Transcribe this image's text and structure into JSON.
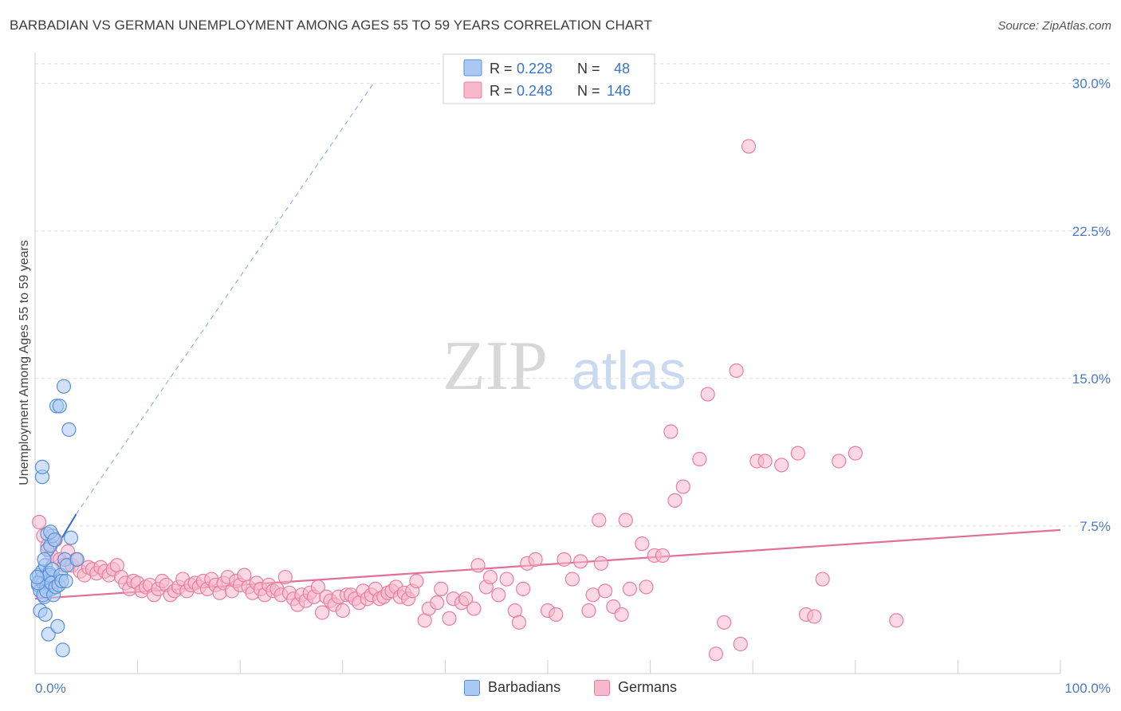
{
  "header": {
    "title": "BARBADIAN VS GERMAN UNEMPLOYMENT AMONG AGES 55 TO 59 YEARS CORRELATION CHART",
    "source": "Source: ZipAtlas.com"
  },
  "watermark": {
    "zip": "ZIP",
    "atlas": "atlas"
  },
  "legend": {
    "rows": [
      {
        "r_label": "R =",
        "r_value": "0.228",
        "n_label": "N =",
        "n_value": "48"
      },
      {
        "r_label": "R =",
        "r_value": "0.248",
        "n_label": "N =",
        "n_value": "146"
      }
    ]
  },
  "bottom_legend": {
    "items": [
      "Barbadians",
      "Germans"
    ]
  },
  "colors": {
    "barbadian_fill": "#a9c8f2",
    "barbadian_stroke": "#5b8fd6",
    "barbadian_line": "#2f6fd1",
    "german_fill": "#f7b8cc",
    "german_stroke": "#e87fa0",
    "german_line": "#e07098",
    "tick_text": "#4a7ac9",
    "grid": "#dddddd"
  },
  "chart_data": {
    "type": "scatter",
    "title": "BARBADIAN VS GERMAN UNEMPLOYMENT AMONG AGES 55 TO 59 YEARS CORRELATION CHART",
    "xlabel": "",
    "ylabel": "Unemployment Among Ages 55 to 59 years",
    "xlim": [
      0,
      100
    ],
    "ylim": [
      0,
      31
    ],
    "x_tick_labels": [
      "0.0%",
      "100.0%"
    ],
    "y_ticks": [
      7.5,
      15.0,
      22.5,
      30.0
    ],
    "y_tick_labels": [
      "7.5%",
      "15.0%",
      "22.5%",
      "30.0%"
    ],
    "series": [
      {
        "name": "Barbadians",
        "R": 0.228,
        "N": 48,
        "trend": {
          "x0": 0,
          "y0": 4.6,
          "x1": 4,
          "y1": 8.1,
          "dashed_to_x": 33,
          "dashed_to_y": 30
        },
        "points": [
          [
            0.3,
            4.5
          ],
          [
            0.4,
            5.0
          ],
          [
            0.5,
            4.2
          ],
          [
            0.6,
            4.8
          ],
          [
            0.7,
            5.2
          ],
          [
            0.8,
            4.6
          ],
          [
            0.9,
            3.9
          ],
          [
            1.0,
            5.5
          ],
          [
            1.1,
            4.4
          ],
          [
            1.2,
            6.3
          ],
          [
            1.3,
            4.7
          ],
          [
            1.4,
            5.1
          ],
          [
            1.5,
            6.5
          ],
          [
            1.6,
            4.3
          ],
          [
            1.7,
            7.0
          ],
          [
            1.8,
            4.9
          ],
          [
            0.5,
            3.2
          ],
          [
            0.7,
            10.0
          ],
          [
            0.7,
            10.5
          ],
          [
            0.8,
            4.0
          ],
          [
            0.9,
            5.8
          ],
          [
            1.0,
            3.0
          ],
          [
            1.1,
            4.2
          ],
          [
            1.2,
            7.1
          ],
          [
            1.3,
            2.0
          ],
          [
            1.4,
            5.0
          ],
          [
            1.5,
            7.2
          ],
          [
            1.6,
            4.6
          ],
          [
            1.7,
            5.3
          ],
          [
            1.8,
            4.0
          ],
          [
            1.9,
            6.8
          ],
          [
            2.0,
            4.4
          ],
          [
            2.1,
            13.6
          ],
          [
            2.2,
            2.4
          ],
          [
            2.3,
            4.5
          ],
          [
            2.4,
            13.6
          ],
          [
            2.5,
            5.0
          ],
          [
            2.6,
            4.7
          ],
          [
            2.7,
            1.2
          ],
          [
            2.8,
            14.6
          ],
          [
            2.9,
            5.8
          ],
          [
            3.0,
            4.7
          ],
          [
            3.1,
            5.5
          ],
          [
            3.3,
            12.4
          ],
          [
            3.5,
            6.9
          ],
          [
            4.1,
            5.8
          ],
          [
            0.3,
            4.6
          ],
          [
            0.2,
            4.9
          ]
        ]
      },
      {
        "name": "Germans",
        "R": 0.248,
        "N": 146,
        "trend": {
          "x0": 0,
          "y0": 3.8,
          "x1": 100,
          "y1": 7.3
        },
        "points": [
          [
            0.4,
            7.7
          ],
          [
            0.8,
            7.0
          ],
          [
            1.2,
            6.5
          ],
          [
            1.6,
            6.0
          ],
          [
            2.0,
            6.8
          ],
          [
            2.4,
            5.8
          ],
          [
            2.8,
            5.5
          ],
          [
            3.2,
            6.2
          ],
          [
            3.6,
            5.5
          ],
          [
            4.0,
            5.8
          ],
          [
            4.4,
            5.2
          ],
          [
            4.8,
            5.0
          ],
          [
            5.2,
            5.4
          ],
          [
            5.6,
            5.3
          ],
          [
            6.0,
            5.1
          ],
          [
            6.4,
            5.4
          ],
          [
            6.8,
            5.2
          ],
          [
            7.2,
            5.0
          ],
          [
            7.6,
            5.3
          ],
          [
            8.0,
            5.5
          ],
          [
            8.4,
            4.9
          ],
          [
            8.8,
            4.6
          ],
          [
            9.2,
            4.3
          ],
          [
            9.6,
            4.7
          ],
          [
            10.0,
            4.6
          ],
          [
            10.4,
            4.2
          ],
          [
            10.8,
            4.4
          ],
          [
            11.2,
            4.5
          ],
          [
            11.6,
            4.0
          ],
          [
            12.0,
            4.3
          ],
          [
            12.4,
            4.7
          ],
          [
            12.8,
            4.5
          ],
          [
            13.2,
            4.0
          ],
          [
            13.6,
            4.2
          ],
          [
            14.0,
            4.4
          ],
          [
            14.4,
            4.8
          ],
          [
            14.8,
            4.2
          ],
          [
            15.2,
            4.5
          ],
          [
            15.6,
            4.6
          ],
          [
            16.0,
            4.4
          ],
          [
            16.4,
            4.7
          ],
          [
            16.8,
            4.3
          ],
          [
            17.2,
            4.8
          ],
          [
            17.6,
            4.5
          ],
          [
            18.0,
            4.1
          ],
          [
            18.4,
            4.6
          ],
          [
            18.8,
            4.9
          ],
          [
            19.2,
            4.2
          ],
          [
            19.6,
            4.7
          ],
          [
            20.0,
            4.5
          ],
          [
            20.4,
            5.0
          ],
          [
            20.8,
            4.4
          ],
          [
            21.2,
            4.1
          ],
          [
            21.6,
            4.6
          ],
          [
            22.0,
            4.3
          ],
          [
            22.4,
            4.0
          ],
          [
            22.8,
            4.5
          ],
          [
            23.2,
            4.2
          ],
          [
            23.6,
            4.3
          ],
          [
            24.0,
            4.0
          ],
          [
            24.4,
            4.9
          ],
          [
            24.8,
            4.1
          ],
          [
            25.2,
            3.8
          ],
          [
            25.6,
            3.5
          ],
          [
            26.0,
            4.0
          ],
          [
            26.4,
            3.7
          ],
          [
            26.8,
            4.1
          ],
          [
            27.2,
            3.9
          ],
          [
            27.6,
            4.4
          ],
          [
            28.0,
            3.1
          ],
          [
            28.4,
            3.9
          ],
          [
            28.8,
            3.7
          ],
          [
            29.2,
            3.5
          ],
          [
            29.6,
            3.9
          ],
          [
            30.0,
            3.2
          ],
          [
            30.4,
            4.0
          ],
          [
            30.8,
            4.0
          ],
          [
            31.2,
            3.8
          ],
          [
            31.6,
            3.6
          ],
          [
            32.0,
            4.2
          ],
          [
            32.4,
            3.8
          ],
          [
            32.8,
            4.0
          ],
          [
            33.2,
            4.3
          ],
          [
            33.6,
            3.8
          ],
          [
            34.0,
            3.9
          ],
          [
            34.4,
            4.1
          ],
          [
            34.8,
            4.2
          ],
          [
            35.2,
            4.4
          ],
          [
            35.6,
            3.9
          ],
          [
            36.0,
            4.1
          ],
          [
            36.4,
            3.8
          ],
          [
            36.8,
            4.2
          ],
          [
            37.2,
            4.7
          ],
          [
            38.0,
            2.7
          ],
          [
            38.4,
            3.3
          ],
          [
            39.2,
            3.6
          ],
          [
            39.6,
            4.3
          ],
          [
            40.4,
            2.8
          ],
          [
            40.8,
            3.8
          ],
          [
            41.6,
            3.6
          ],
          [
            42.0,
            3.8
          ],
          [
            42.8,
            3.3
          ],
          [
            43.2,
            5.5
          ],
          [
            44.0,
            4.4
          ],
          [
            44.4,
            4.9
          ],
          [
            45.2,
            4.0
          ],
          [
            46.0,
            4.8
          ],
          [
            46.8,
            3.2
          ],
          [
            47.2,
            2.6
          ],
          [
            47.6,
            4.3
          ],
          [
            48.0,
            5.6
          ],
          [
            48.8,
            5.8
          ],
          [
            50.0,
            3.2
          ],
          [
            50.8,
            3.0
          ],
          [
            51.6,
            5.8
          ],
          [
            52.4,
            4.8
          ],
          [
            53.2,
            5.7
          ],
          [
            54.0,
            3.2
          ],
          [
            54.4,
            4.0
          ],
          [
            55.2,
            5.6
          ],
          [
            55.6,
            4.2
          ],
          [
            56.4,
            3.4
          ],
          [
            57.2,
            3.0
          ],
          [
            58.0,
            4.3
          ],
          [
            59.6,
            4.4
          ],
          [
            60.4,
            6.0
          ],
          [
            61.2,
            6.0
          ],
          [
            62.4,
            8.8
          ],
          [
            63.2,
            9.5
          ],
          [
            64.8,
            10.9
          ],
          [
            65.6,
            14.2
          ],
          [
            66.4,
            1.0
          ],
          [
            67.2,
            2.6
          ],
          [
            68.8,
            1.5
          ],
          [
            69.6,
            26.8
          ],
          [
            70.4,
            10.8
          ],
          [
            71.2,
            10.8
          ],
          [
            72.8,
            10.6
          ],
          [
            74.4,
            11.2
          ],
          [
            75.2,
            3.0
          ],
          [
            76.0,
            2.9
          ],
          [
            76.8,
            4.8
          ],
          [
            78.4,
            10.8
          ],
          [
            80.0,
            11.2
          ],
          [
            84.0,
            2.7
          ],
          [
            55.0,
            7.8
          ],
          [
            57.6,
            7.8
          ],
          [
            59.2,
            6.6
          ],
          [
            62.0,
            12.3
          ],
          [
            68.4,
            15.4
          ]
        ]
      }
    ]
  }
}
